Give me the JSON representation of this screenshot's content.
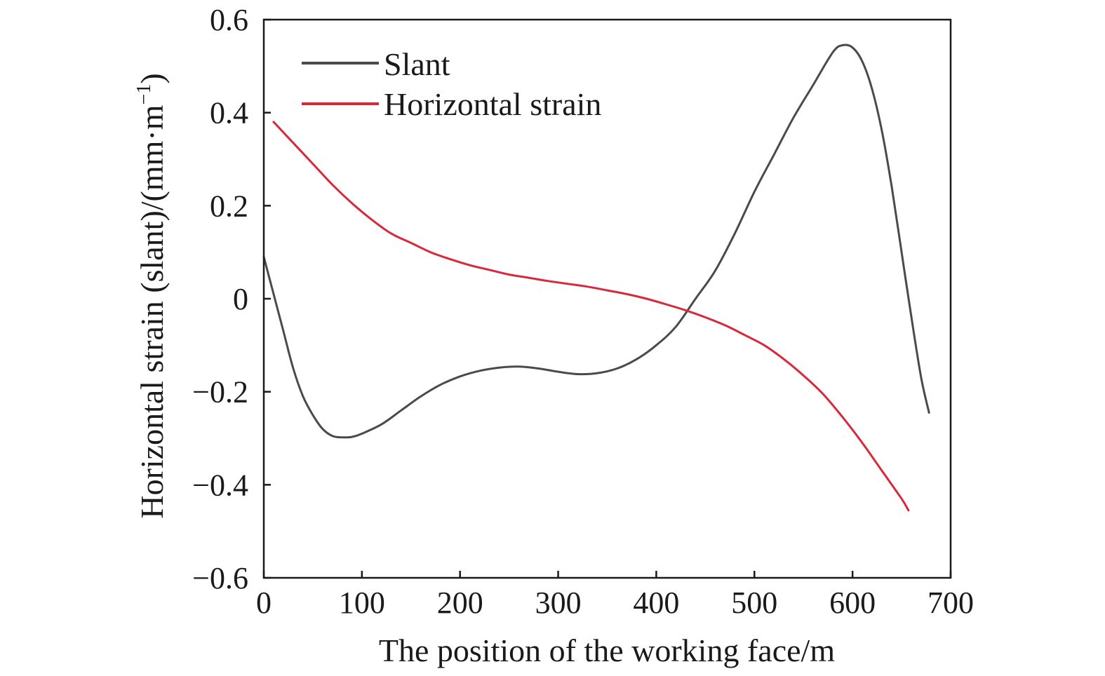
{
  "chart_data": {
    "type": "line",
    "xlabel": "The position of the working face/m",
    "ylabel_main": "Horizontal strain (slant)/(mm·m",
    "ylabel_sup": "−1",
    "ylabel_close": ")",
    "xlim": [
      0,
      700
    ],
    "ylim": [
      -0.6,
      0.6
    ],
    "x_ticks": [
      0,
      100,
      200,
      300,
      400,
      500,
      600,
      700
    ],
    "x_tick_labels": [
      "0",
      "100",
      "200",
      "300",
      "400",
      "500",
      "600",
      "700"
    ],
    "y_ticks": [
      -0.6,
      -0.4,
      -0.2,
      0,
      0.2,
      0.4,
      0.6
    ],
    "y_tick_labels": [
      "−0.6",
      "−0.4",
      "−0.2",
      "0",
      "0.2",
      "0.4",
      "0.6"
    ],
    "grid": false,
    "legend_position": "top-left",
    "series": [
      {
        "name": "Slant",
        "color": "#4a4a4a",
        "x": [
          0,
          10,
          20,
          30,
          40,
          50,
          60,
          70,
          80,
          90,
          100,
          120,
          140,
          160,
          180,
          200,
          220,
          240,
          260,
          280,
          300,
          320,
          340,
          360,
          380,
          400,
          420,
          440,
          460,
          480,
          500,
          520,
          540,
          560,
          580,
          590,
          600,
          610,
          620,
          630,
          640,
          650,
          660,
          670,
          678
        ],
        "y": [
          0.09,
          0.01,
          -0.07,
          -0.15,
          -0.21,
          -0.25,
          -0.28,
          -0.295,
          -0.298,
          -0.297,
          -0.29,
          -0.27,
          -0.24,
          -0.21,
          -0.185,
          -0.167,
          -0.155,
          -0.148,
          -0.146,
          -0.15,
          -0.157,
          -0.162,
          -0.16,
          -0.15,
          -0.13,
          -0.1,
          -0.06,
          0.0,
          0.06,
          0.14,
          0.23,
          0.31,
          0.39,
          0.46,
          0.53,
          0.545,
          0.54,
          0.51,
          0.45,
          0.36,
          0.24,
          0.1,
          -0.04,
          -0.17,
          -0.245
        ]
      },
      {
        "name": "Horizontal strain",
        "color": "#d8283a",
        "x": [
          10,
          30,
          50,
          70,
          90,
          110,
          130,
          150,
          170,
          190,
          210,
          230,
          250,
          270,
          290,
          310,
          330,
          350,
          370,
          390,
          410,
          430,
          450,
          470,
          490,
          510,
          530,
          550,
          570,
          590,
          610,
          630,
          650,
          657
        ],
        "y": [
          0.38,
          0.335,
          0.29,
          0.245,
          0.205,
          0.17,
          0.14,
          0.12,
          0.1,
          0.085,
          0.072,
          0.062,
          0.052,
          0.045,
          0.038,
          0.032,
          0.026,
          0.018,
          0.01,
          0.0,
          -0.012,
          -0.025,
          -0.04,
          -0.057,
          -0.078,
          -0.1,
          -0.13,
          -0.165,
          -0.205,
          -0.255,
          -0.31,
          -0.37,
          -0.43,
          -0.455
        ]
      }
    ]
  }
}
